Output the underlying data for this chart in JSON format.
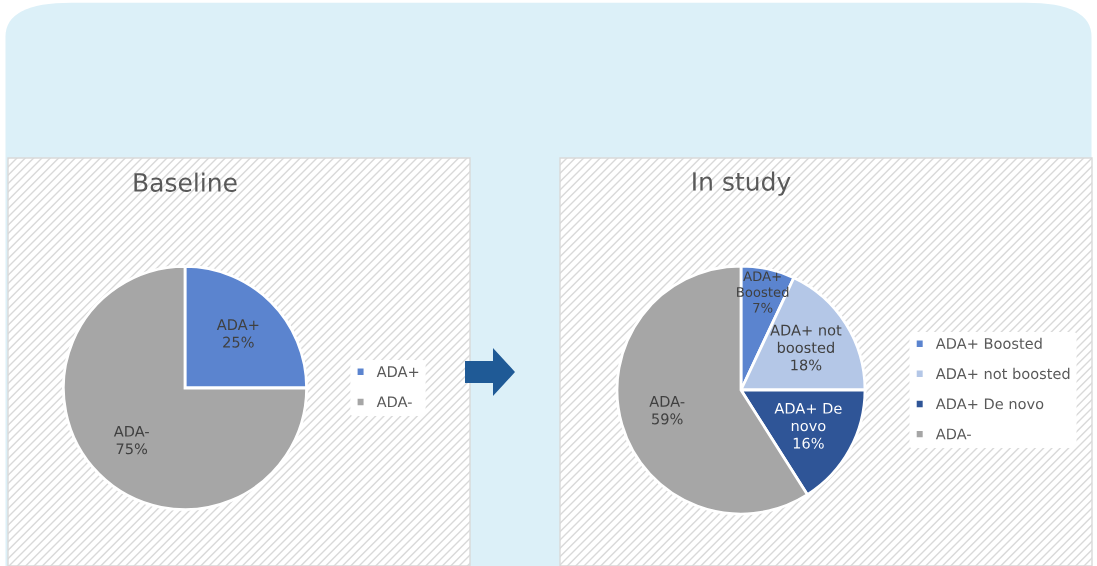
{
  "chart_data": [
    {
      "type": "pie",
      "title": "Baseline",
      "categories": [
        "ADA+",
        "ADA-"
      ],
      "values": [
        25,
        75
      ],
      "colors": [
        "#5b84cf",
        "#a6a6a6"
      ],
      "value_labels": [
        "ADA+\n25%",
        "ADA-\n75%"
      ],
      "legend": "right"
    },
    {
      "type": "pie",
      "title": "In study",
      "categories": [
        "ADA+ Boosted",
        "ADA+ not boosted",
        "ADA+ De novo",
        "ADA-"
      ],
      "values": [
        7,
        18,
        16,
        59
      ],
      "colors": [
        "#5b84cf",
        "#b4c7e7",
        "#2f5597",
        "#a6a6a6"
      ],
      "value_labels": [
        "ADA+\nBoosted\n7%",
        "ADA+ not\nboosted\n18%",
        "ADA+ De\nnovo\n16%",
        "ADA-\n59%"
      ],
      "legend": "right"
    }
  ]
}
